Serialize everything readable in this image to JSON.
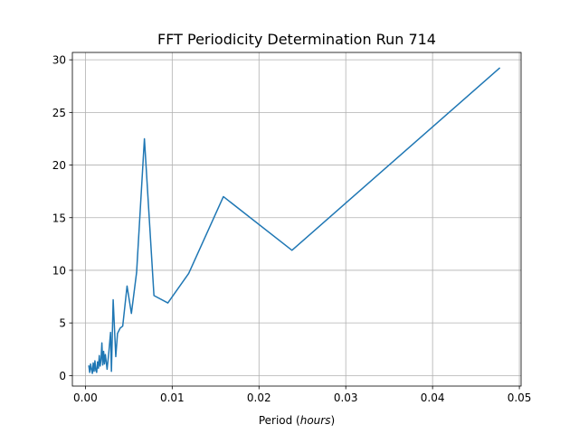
{
  "chart_data": {
    "type": "line",
    "title": "FFT Periodicity Determination Run 714",
    "xlabel_prefix": "Period (",
    "xlabel_italic": "hours",
    "xlabel_suffix": ")",
    "ylabel": "",
    "xlim": [
      -0.0015,
      0.0502
    ],
    "ylim": [
      -1.0,
      30.7
    ],
    "xticks": [
      0.0,
      0.01,
      0.02,
      0.03,
      0.04,
      0.05
    ],
    "xtick_labels": [
      "0.00",
      "0.01",
      "0.02",
      "0.03",
      "0.04",
      "0.05"
    ],
    "yticks": [
      0,
      5,
      10,
      15,
      20,
      25,
      30
    ],
    "ytick_labels": [
      "0",
      "5",
      "10",
      "15",
      "20",
      "25",
      "30"
    ],
    "grid": true,
    "series": [
      {
        "name": "Run 714",
        "color": "#1f77b4",
        "x": [
          0.0004,
          0.0005,
          0.0006,
          0.0007,
          0.0008,
          0.0009,
          0.001,
          0.0011,
          0.0012,
          0.0013,
          0.0014,
          0.0015,
          0.0016,
          0.0017,
          0.0018,
          0.0019,
          0.002,
          0.0021,
          0.0022,
          0.0023,
          0.0025,
          0.0027,
          0.0029,
          0.003,
          0.0032,
          0.0035,
          0.0037,
          0.004,
          0.0043,
          0.0048,
          0.0053,
          0.0059,
          0.0068,
          0.0079,
          0.0095,
          0.0119,
          0.0159,
          0.0238,
          0.0477
        ],
        "y": [
          0.9,
          0.3,
          1.1,
          0.6,
          0.2,
          1.2,
          0.4,
          1.4,
          0.5,
          0.3,
          1.3,
          0.7,
          1.9,
          0.9,
          1.5,
          3.1,
          1.0,
          2.3,
          1.1,
          2.0,
          0.6,
          2.2,
          4.1,
          0.4,
          7.2,
          1.8,
          4.0,
          4.5,
          4.7,
          8.5,
          5.9,
          9.8,
          22.5,
          7.6,
          6.9,
          9.7,
          17.0,
          11.9,
          29.2
        ]
      }
    ]
  }
}
